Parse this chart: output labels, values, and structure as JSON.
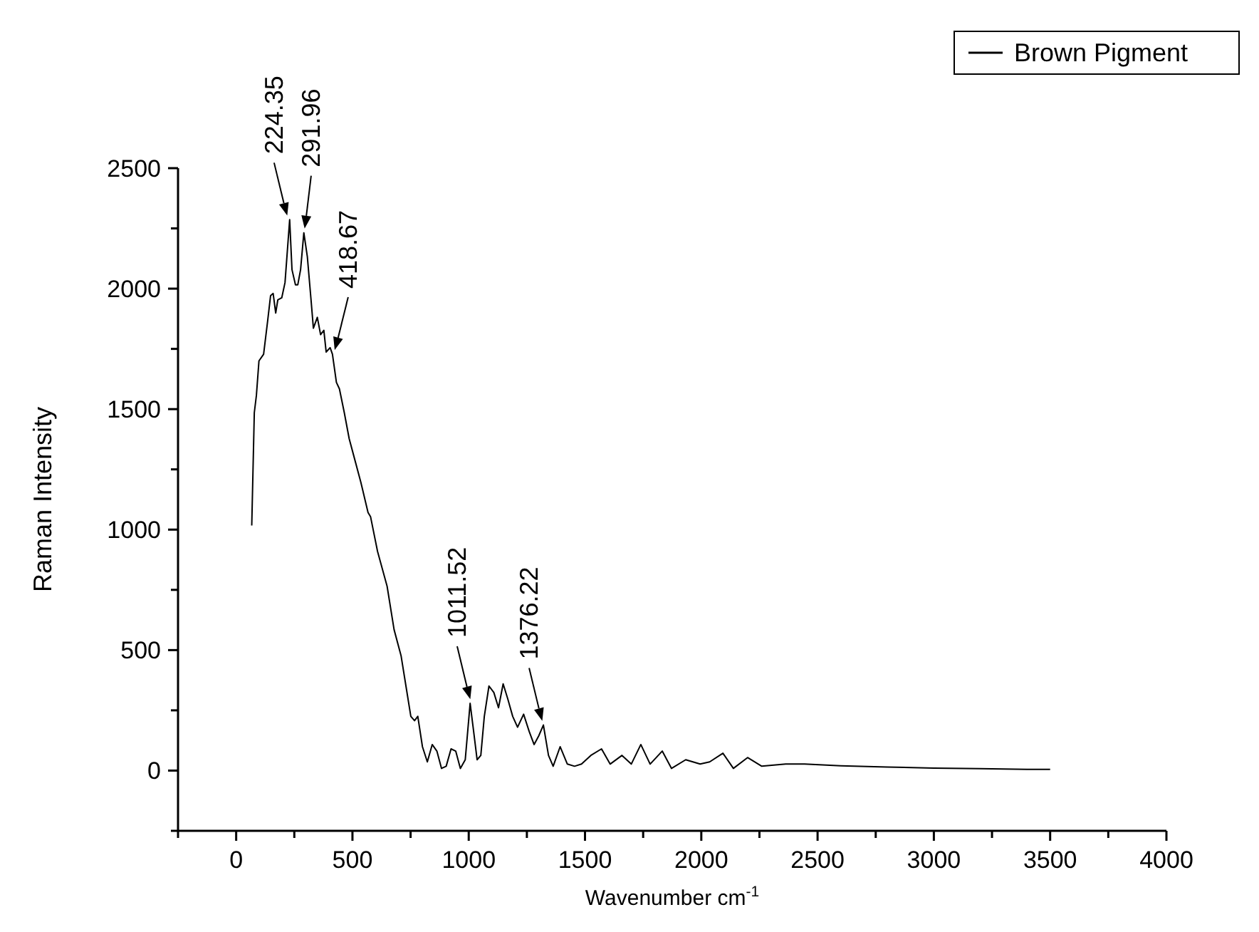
{
  "chart_data": {
    "type": "line",
    "xlabel": "Wavenumber cm$^{-1}$",
    "ylabel": "Raman Intensity",
    "legend": "top right",
    "grid": false,
    "xlim": [
      -250,
      4000
    ],
    "xticks": [
      {
        "value": -250,
        "label": null
      },
      0,
      {
        "value": 250,
        "label": null
      },
      500,
      {
        "value": 750,
        "label": null
      },
      1000,
      {
        "value": 1250,
        "label": null
      },
      1500,
      {
        "value": 1750,
        "label": null
      },
      2000,
      {
        "value": 2250,
        "label": null
      },
      2500,
      {
        "value": 2750,
        "label": null
      },
      3000,
      {
        "value": 3250,
        "label": null
      },
      3500,
      {
        "value": 3750,
        "label": null
      },
      4000
    ],
    "ylim": [
      -250,
      2500
    ],
    "yticks": [
      {
        "value": -250,
        "label": null
      },
      0,
      {
        "value": 250,
        "label": null
      },
      500,
      {
        "value": 750,
        "label": null
      },
      1000,
      {
        "value": 1250,
        "label": null
      },
      1500,
      {
        "value": 1750,
        "label": null
      },
      2000,
      {
        "value": 2250,
        "label": null
      },
      2500
    ],
    "annotations": [
      {
        "text": "224.35",
        "x": 224.35,
        "y": 2286
      },
      {
        "text": "291.96",
        "x": 291.96,
        "y": 2232
      },
      {
        "text": "418.67",
        "x": 418.67,
        "y": 1728
      },
      {
        "text": "1011.52",
        "x": 1011.52,
        "y": 279
      },
      {
        "text": "1376.22",
        "x": 1321,
        "y": 189
      }
    ],
    "series": [
      {
        "name": "Brown Pigment",
        "color": "#000000",
        "x": [
          67,
          78,
          87,
          98,
          118,
          135,
          148,
          159,
          170,
          179,
          196,
          210,
          230,
          240,
          255,
          265,
          277,
          291,
          306,
          322,
          332,
          349,
          363,
          377,
          387,
          404,
          414,
          431,
          444,
          465,
          486,
          506,
          536,
          567,
          578,
          608,
          649,
          679,
          709,
          730,
          751,
          767,
          781,
          801,
          822,
          843,
          863,
          883,
          903,
          924,
          944,
          964,
          985,
          1006,
          1020,
          1036,
          1052,
          1067,
          1087,
          1108,
          1128,
          1148,
          1168,
          1189,
          1210,
          1236,
          1260,
          1281,
          1301,
          1321,
          1343,
          1363,
          1393,
          1424,
          1455,
          1485,
          1525,
          1571,
          1608,
          1659,
          1699,
          1740,
          1780,
          1832,
          1872,
          1933,
          1995,
          2036,
          2093,
          2138,
          2199,
          2260,
          2363,
          2444,
          2600,
          2800,
          3000,
          3200,
          3400,
          3500
        ],
        "values": [
          1017,
          1485,
          1557,
          1700,
          1728,
          1863,
          1971,
          1980,
          1899,
          1953,
          1962,
          2025,
          2286,
          2079,
          2016,
          2016,
          2079,
          2232,
          2133,
          1953,
          1836,
          1881,
          1809,
          1827,
          1737,
          1755,
          1728,
          1611,
          1584,
          1485,
          1377,
          1305,
          1197,
          1071,
          1053,
          909,
          765,
          585,
          477,
          351,
          225,
          207,
          225,
          99,
          36,
          108,
          81,
          9,
          18,
          90,
          81,
          9,
          45,
          279,
          171,
          45,
          63,
          225,
          351,
          324,
          261,
          360,
          297,
          225,
          180,
          234,
          162,
          108,
          144,
          189,
          63,
          18,
          99,
          27,
          18,
          27,
          63,
          90,
          27,
          63,
          27,
          108,
          27,
          81,
          9,
          45,
          27,
          36,
          72,
          9,
          54,
          18,
          27,
          27,
          20,
          15,
          10,
          8,
          5,
          5
        ]
      }
    ]
  }
}
